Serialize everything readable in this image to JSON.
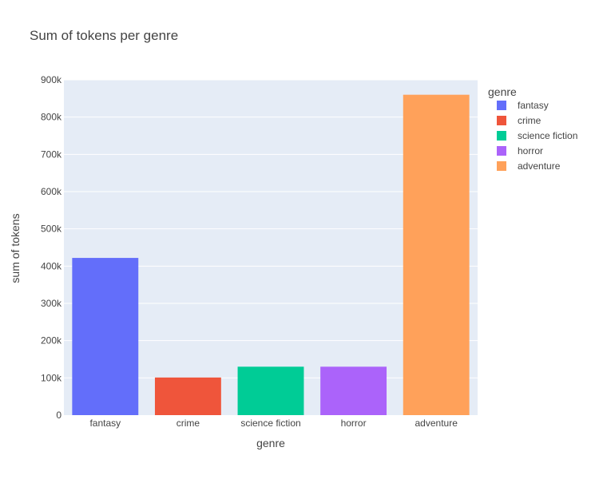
{
  "chart_data": {
    "type": "bar",
    "title": "Sum of tokens per genre",
    "xlabel": "genre",
    "ylabel": "sum of tokens",
    "categories": [
      "fantasy",
      "crime",
      "science fiction",
      "horror",
      "adventure"
    ],
    "series": [
      {
        "name": "fantasy",
        "values": [
          422000,
          null,
          null,
          null,
          null
        ],
        "color": "#636efa"
      },
      {
        "name": "crime",
        "values": [
          null,
          101000,
          null,
          null,
          null
        ],
        "color": "#ef553b"
      },
      {
        "name": "science fiction",
        "values": [
          null,
          null,
          130000,
          null,
          null
        ],
        "color": "#00cc96"
      },
      {
        "name": "horror",
        "values": [
          null,
          null,
          null,
          130000,
          null
        ],
        "color": "#ab63fa"
      },
      {
        "name": "adventure",
        "values": [
          null,
          null,
          null,
          null,
          860000
        ],
        "color": "#ffa15a"
      }
    ],
    "ylim": [
      0,
      900000
    ],
    "yticks": [
      0,
      100000,
      200000,
      300000,
      400000,
      500000,
      600000,
      700000,
      800000,
      900000
    ],
    "ytick_labels": [
      "0",
      "100k",
      "200k",
      "300k",
      "400k",
      "500k",
      "600k",
      "700k",
      "800k",
      "900k"
    ],
    "grid": true,
    "legend": {
      "title": "genre",
      "position": "top-right"
    },
    "plot_bg": "#e5ecf6"
  }
}
